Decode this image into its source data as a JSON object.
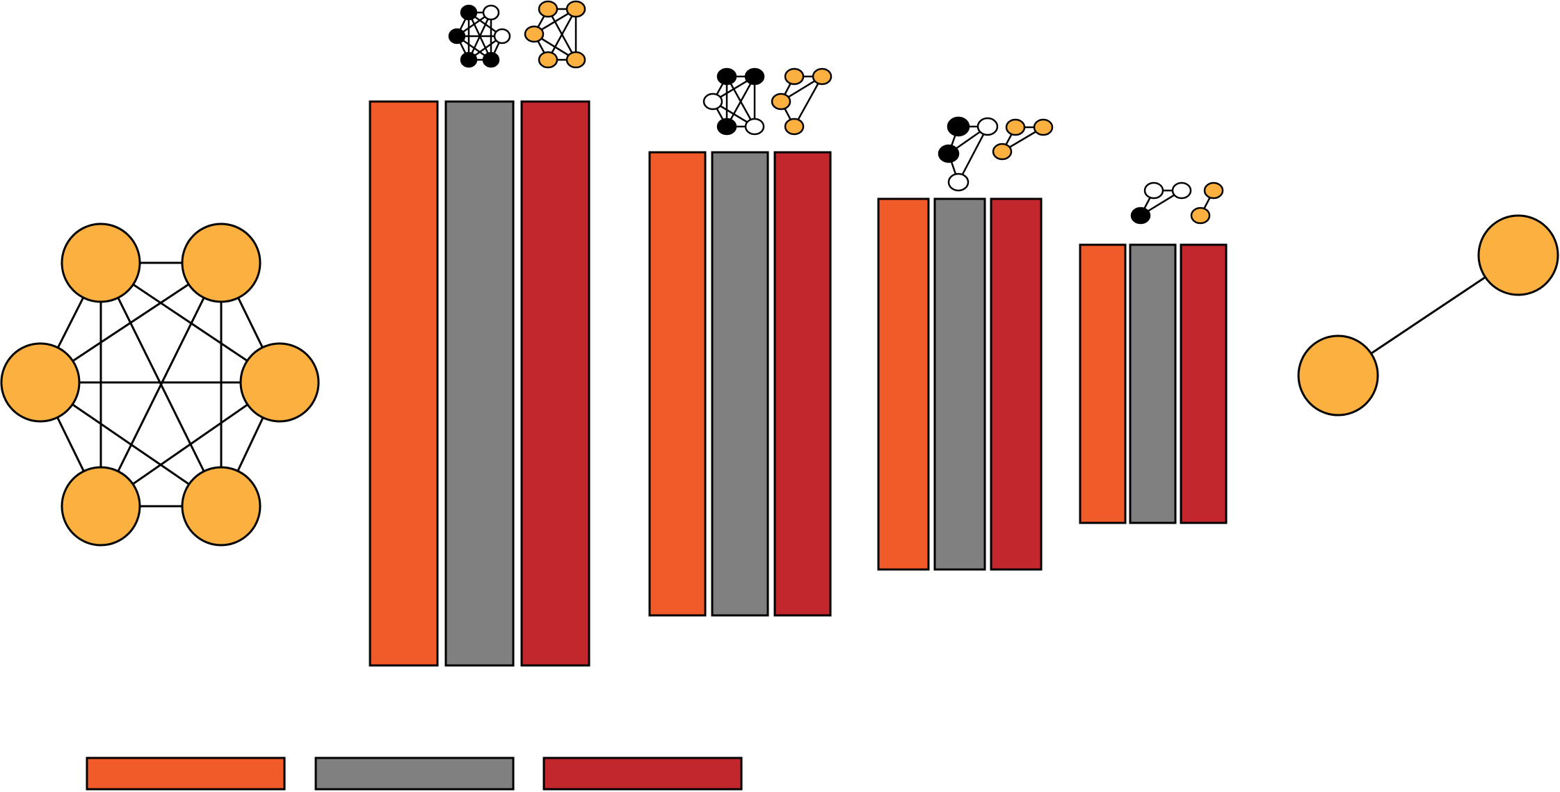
{
  "colors": {
    "orange": "#F15A29",
    "gray": "#808080",
    "red": "#C1272D",
    "node": "#FBB040",
    "black": "#000000",
    "white": "#FFFFFF"
  },
  "legend": {
    "items": [
      {
        "color": "orange"
      },
      {
        "color": "gray"
      },
      {
        "color": "red"
      }
    ]
  },
  "input_graph": {
    "node_count": 6,
    "fully_connected": true
  },
  "layers": [
    {
      "bars": [
        "orange",
        "gray",
        "red"
      ],
      "depth_level": 1
    },
    {
      "bars": [
        "orange",
        "gray",
        "red"
      ],
      "depth_level": 0.82
    },
    {
      "bars": [
        "orange",
        "gray",
        "red"
      ],
      "depth_level": 0.66
    },
    {
      "bars": [
        "orange",
        "gray",
        "red"
      ],
      "depth_level": 0.49
    }
  ],
  "output_graph": {
    "node_count": 2,
    "edges": 1
  }
}
